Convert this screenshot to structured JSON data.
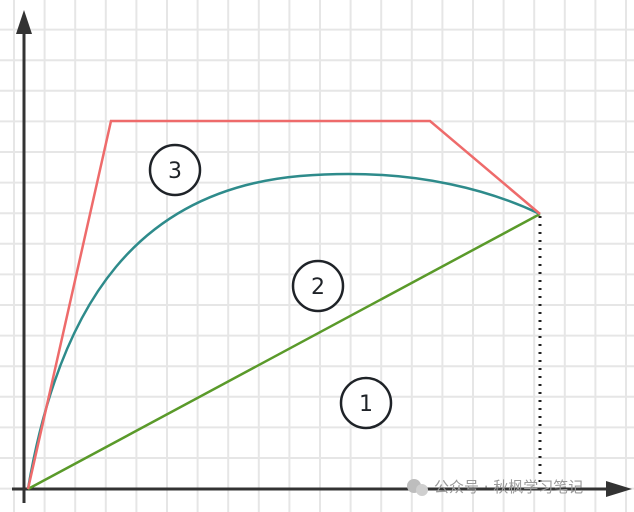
{
  "diagram": {
    "colors": {
      "grid": "#e6e6e6",
      "axis": "#333333",
      "line1": "#5a9a2a",
      "line2": "#2e8b8b",
      "line3": "#ee6b6b",
      "circle": "#1f2328"
    },
    "regions": [
      {
        "id": "1",
        "label": "1"
      },
      {
        "id": "2",
        "label": "2"
      },
      {
        "id": "3",
        "label": "3"
      }
    ],
    "watermark": "公众号 · 秋枫学习笔记"
  }
}
